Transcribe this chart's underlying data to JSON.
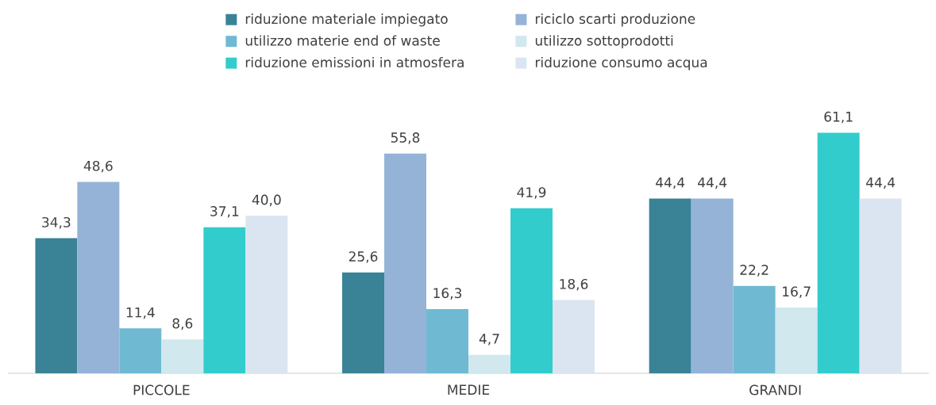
{
  "chart_data": {
    "type": "bar",
    "categories": [
      "PICCOLE",
      "MEDIE",
      "GRANDI"
    ],
    "series": [
      {
        "name": "riduzione materiale impiegato",
        "color": "#3a8296",
        "values": [
          34.3,
          25.6,
          44.4
        ],
        "value_labels": [
          "34,3",
          "25,6",
          "44,4"
        ]
      },
      {
        "name": "riciclo scarti produzione",
        "color": "#95b3d7",
        "values": [
          48.6,
          55.8,
          44.4
        ],
        "value_labels": [
          "48,6",
          "55,8",
          "44,4"
        ]
      },
      {
        "name": "utilizzo materie end of waste",
        "color": "#6fbad2",
        "values": [
          11.4,
          16.3,
          22.2
        ],
        "value_labels": [
          "11,4",
          "16,3",
          "22,2"
        ]
      },
      {
        "name": "utilizzo sottoprodotti",
        "color": "#d0e8ee",
        "values": [
          8.6,
          4.7,
          16.7
        ],
        "value_labels": [
          "8,6",
          "4,7",
          "16,7"
        ]
      },
      {
        "name": "riduzione emissioni in atmosfera",
        "color": "#33cccc",
        "values": [
          37.1,
          41.9,
          61.1
        ],
        "value_labels": [
          "37,1",
          "41,9",
          "61,1"
        ]
      },
      {
        "name": "riduzione consumo acqua",
        "color": "#dbe5f1",
        "values": [
          40.0,
          18.6,
          44.4
        ],
        "value_labels": [
          "40,0",
          "18,6",
          "44,4"
        ]
      }
    ],
    "legend": "top"
  }
}
